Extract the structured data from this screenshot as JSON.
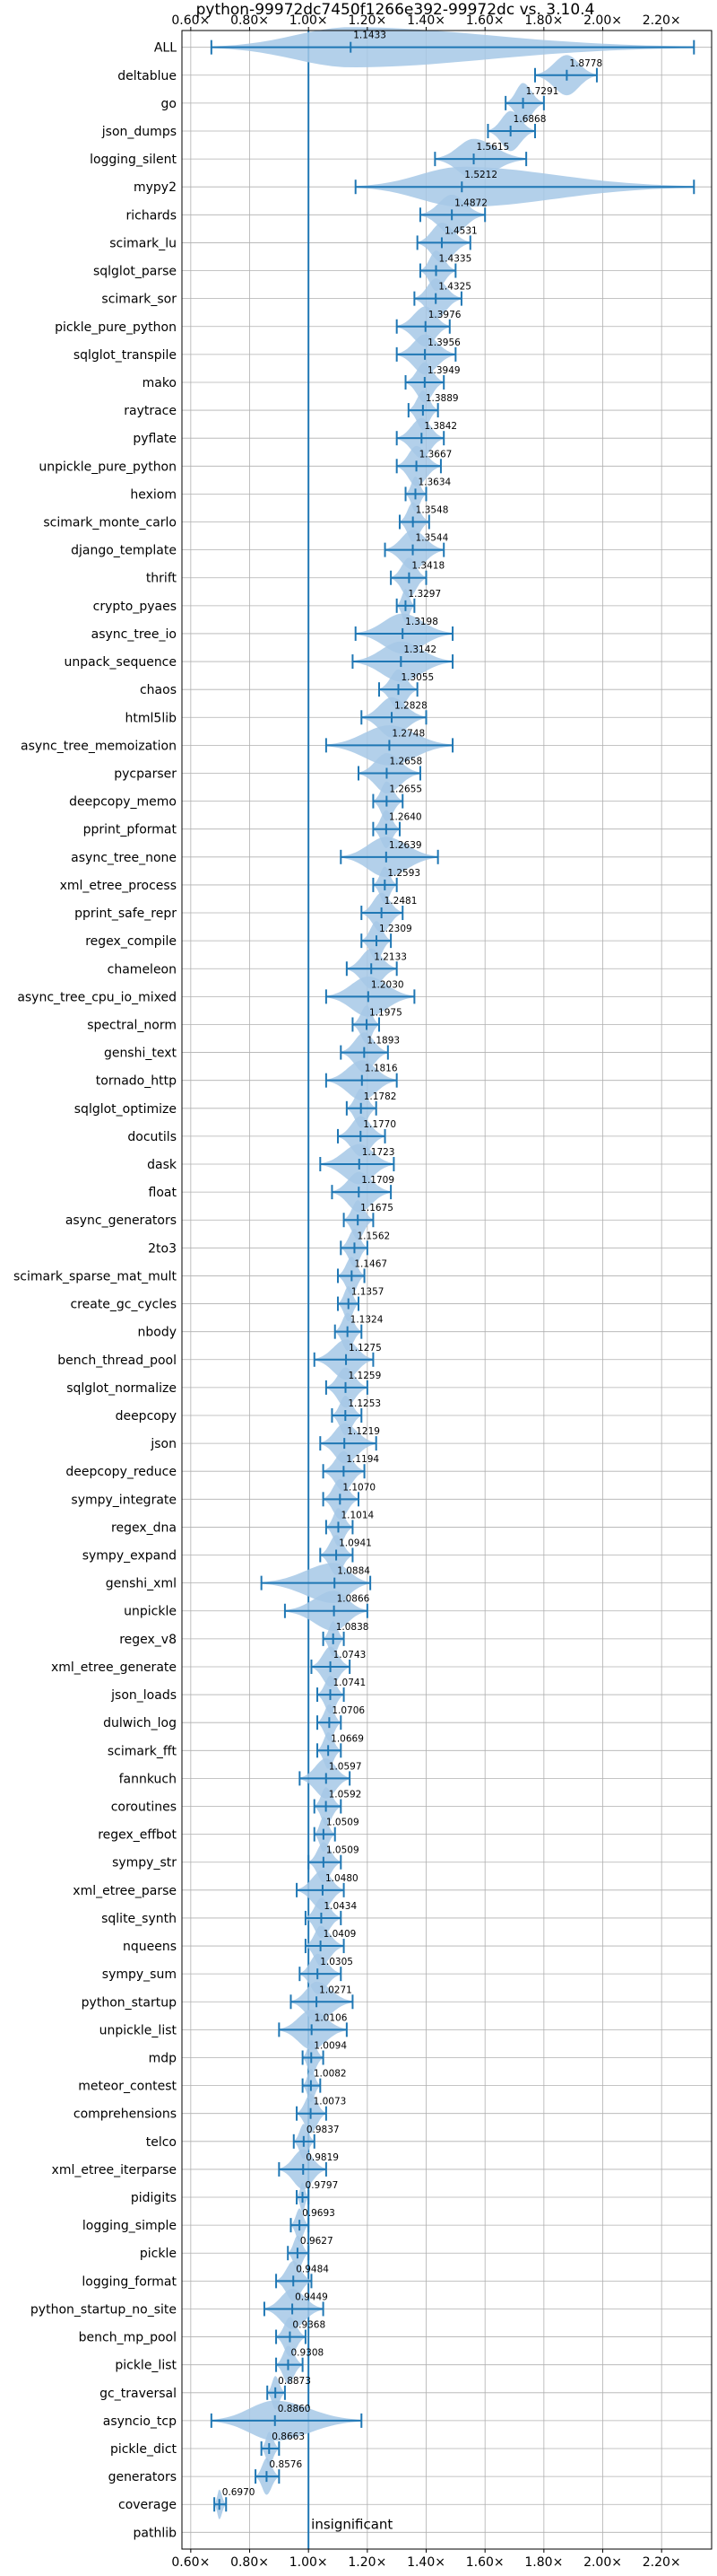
{
  "chart_data": {
    "type": "violin",
    "title": "python-99972dc7450f1266e392-99972dc vs. 3.10.4",
    "xlabel": "",
    "ylabel": "",
    "xlim": [
      0.57,
      2.37
    ],
    "x_ticks": [
      "0.60×",
      "0.80×",
      "1.00×",
      "1.20×",
      "1.40×",
      "1.60×",
      "1.80×",
      "2.00×",
      "2.20×"
    ],
    "x_tick_values": [
      0.6,
      0.8,
      1.0,
      1.2,
      1.4,
      1.6,
      1.8,
      2.0,
      2.2
    ],
    "reference_line": 1.0,
    "grid": true,
    "color": "#1f77b4",
    "violin_color": "#a6c8e6",
    "annotation": "insignificant",
    "benchmarks": [
      {
        "name": "ALL",
        "mean": 1.1433,
        "min": 0.67,
        "max": 2.31,
        "label": "1.1433"
      },
      {
        "name": "deltablue",
        "mean": 1.8778,
        "min": 1.77,
        "max": 1.98,
        "label": "1.8778"
      },
      {
        "name": "go",
        "mean": 1.7291,
        "min": 1.67,
        "max": 1.8,
        "label": "1.7291"
      },
      {
        "name": "json_dumps",
        "mean": 1.6868,
        "min": 1.61,
        "max": 1.77,
        "label": "1.6868"
      },
      {
        "name": "logging_silent",
        "mean": 1.5615,
        "min": 1.43,
        "max": 1.74,
        "label": "1.5615"
      },
      {
        "name": "mypy2",
        "mean": 1.5212,
        "min": 1.16,
        "max": 2.31,
        "label": "1.5212"
      },
      {
        "name": "richards",
        "mean": 1.4872,
        "min": 1.38,
        "max": 1.6,
        "label": "1.4872"
      },
      {
        "name": "scimark_lu",
        "mean": 1.4531,
        "min": 1.37,
        "max": 1.55,
        "label": "1.4531"
      },
      {
        "name": "sqlglot_parse",
        "mean": 1.4335,
        "min": 1.38,
        "max": 1.5,
        "label": "1.4335"
      },
      {
        "name": "scimark_sor",
        "mean": 1.4325,
        "min": 1.36,
        "max": 1.52,
        "label": "1.4325"
      },
      {
        "name": "pickle_pure_python",
        "mean": 1.3976,
        "min": 1.3,
        "max": 1.48,
        "label": "1.3976"
      },
      {
        "name": "sqlglot_transpile",
        "mean": 1.3956,
        "min": 1.3,
        "max": 1.5,
        "label": "1.3956"
      },
      {
        "name": "mako",
        "mean": 1.3949,
        "min": 1.33,
        "max": 1.46,
        "label": "1.3949"
      },
      {
        "name": "raytrace",
        "mean": 1.3889,
        "min": 1.34,
        "max": 1.44,
        "label": "1.3889"
      },
      {
        "name": "pyflate",
        "mean": 1.3842,
        "min": 1.3,
        "max": 1.46,
        "label": "1.3842"
      },
      {
        "name": "unpickle_pure_python",
        "mean": 1.3667,
        "min": 1.3,
        "max": 1.45,
        "label": "1.3667"
      },
      {
        "name": "hexiom",
        "mean": 1.3634,
        "min": 1.33,
        "max": 1.4,
        "label": "1.3634"
      },
      {
        "name": "scimark_monte_carlo",
        "mean": 1.3548,
        "min": 1.31,
        "max": 1.41,
        "label": "1.3548"
      },
      {
        "name": "django_template",
        "mean": 1.3544,
        "min": 1.26,
        "max": 1.46,
        "label": "1.3544"
      },
      {
        "name": "thrift",
        "mean": 1.3418,
        "min": 1.28,
        "max": 1.4,
        "label": "1.3418"
      },
      {
        "name": "crypto_pyaes",
        "mean": 1.3297,
        "min": 1.3,
        "max": 1.36,
        "label": "1.3297"
      },
      {
        "name": "async_tree_io",
        "mean": 1.3198,
        "min": 1.16,
        "max": 1.49,
        "label": "1.3198"
      },
      {
        "name": "unpack_sequence",
        "mean": 1.3142,
        "min": 1.15,
        "max": 1.49,
        "label": "1.3142"
      },
      {
        "name": "chaos",
        "mean": 1.3055,
        "min": 1.24,
        "max": 1.37,
        "label": "1.3055"
      },
      {
        "name": "html5lib",
        "mean": 1.2828,
        "min": 1.18,
        "max": 1.4,
        "label": "1.2828"
      },
      {
        "name": "async_tree_memoization",
        "mean": 1.2748,
        "min": 1.06,
        "max": 1.49,
        "label": "1.2748"
      },
      {
        "name": "pycparser",
        "mean": 1.2658,
        "min": 1.17,
        "max": 1.38,
        "label": "1.2658"
      },
      {
        "name": "deepcopy_memo",
        "mean": 1.2655,
        "min": 1.22,
        "max": 1.32,
        "label": "1.2655"
      },
      {
        "name": "pprint_pformat",
        "mean": 1.264,
        "min": 1.22,
        "max": 1.31,
        "label": "1.2640"
      },
      {
        "name": "async_tree_none",
        "mean": 1.2639,
        "min": 1.11,
        "max": 1.44,
        "label": "1.2639"
      },
      {
        "name": "xml_etree_process",
        "mean": 1.2593,
        "min": 1.22,
        "max": 1.3,
        "label": "1.2593"
      },
      {
        "name": "pprint_safe_repr",
        "mean": 1.2481,
        "min": 1.18,
        "max": 1.32,
        "label": "1.2481"
      },
      {
        "name": "regex_compile",
        "mean": 1.2309,
        "min": 1.18,
        "max": 1.28,
        "label": "1.2309"
      },
      {
        "name": "chameleon",
        "mean": 1.2133,
        "min": 1.13,
        "max": 1.3,
        "label": "1.2133"
      },
      {
        "name": "async_tree_cpu_io_mixed",
        "mean": 1.203,
        "min": 1.06,
        "max": 1.36,
        "label": "1.2030"
      },
      {
        "name": "spectral_norm",
        "mean": 1.1975,
        "min": 1.15,
        "max": 1.24,
        "label": "1.1975"
      },
      {
        "name": "genshi_text",
        "mean": 1.1893,
        "min": 1.11,
        "max": 1.27,
        "label": "1.1893"
      },
      {
        "name": "tornado_http",
        "mean": 1.1816,
        "min": 1.06,
        "max": 1.3,
        "label": "1.1816"
      },
      {
        "name": "sqlglot_optimize",
        "mean": 1.1782,
        "min": 1.13,
        "max": 1.23,
        "label": "1.1782"
      },
      {
        "name": "docutils",
        "mean": 1.177,
        "min": 1.1,
        "max": 1.26,
        "label": "1.1770"
      },
      {
        "name": "dask",
        "mean": 1.1723,
        "min": 1.04,
        "max": 1.29,
        "label": "1.1723"
      },
      {
        "name": "float",
        "mean": 1.1709,
        "min": 1.08,
        "max": 1.28,
        "label": "1.1709"
      },
      {
        "name": "async_generators",
        "mean": 1.1675,
        "min": 1.12,
        "max": 1.22,
        "label": "1.1675"
      },
      {
        "name": "2to3",
        "mean": 1.1562,
        "min": 1.11,
        "max": 1.2,
        "label": "1.1562"
      },
      {
        "name": "scimark_sparse_mat_mult",
        "mean": 1.1467,
        "min": 1.1,
        "max": 1.19,
        "label": "1.1467"
      },
      {
        "name": "create_gc_cycles",
        "mean": 1.1357,
        "min": 1.1,
        "max": 1.17,
        "label": "1.1357"
      },
      {
        "name": "nbody",
        "mean": 1.1324,
        "min": 1.09,
        "max": 1.18,
        "label": "1.1324"
      },
      {
        "name": "bench_thread_pool",
        "mean": 1.1275,
        "min": 1.02,
        "max": 1.22,
        "label": "1.1275"
      },
      {
        "name": "sqlglot_normalize",
        "mean": 1.1259,
        "min": 1.06,
        "max": 1.2,
        "label": "1.1259"
      },
      {
        "name": "deepcopy",
        "mean": 1.1253,
        "min": 1.08,
        "max": 1.18,
        "label": "1.1253"
      },
      {
        "name": "json",
        "mean": 1.1219,
        "min": 1.04,
        "max": 1.23,
        "label": "1.1219"
      },
      {
        "name": "deepcopy_reduce",
        "mean": 1.1194,
        "min": 1.05,
        "max": 1.19,
        "label": "1.1194"
      },
      {
        "name": "sympy_integrate",
        "mean": 1.107,
        "min": 1.05,
        "max": 1.17,
        "label": "1.1070"
      },
      {
        "name": "regex_dna",
        "mean": 1.1014,
        "min": 1.06,
        "max": 1.15,
        "label": "1.1014"
      },
      {
        "name": "sympy_expand",
        "mean": 1.0941,
        "min": 1.04,
        "max": 1.15,
        "label": "1.0941"
      },
      {
        "name": "genshi_xml",
        "mean": 1.0884,
        "min": 0.84,
        "max": 1.21,
        "label": "1.0884"
      },
      {
        "name": "unpickle",
        "mean": 1.0866,
        "min": 0.92,
        "max": 1.2,
        "label": "1.0866"
      },
      {
        "name": "regex_v8",
        "mean": 1.0838,
        "min": 1.05,
        "max": 1.12,
        "label": "1.0838"
      },
      {
        "name": "xml_etree_generate",
        "mean": 1.0743,
        "min": 1.01,
        "max": 1.14,
        "label": "1.0743"
      },
      {
        "name": "json_loads",
        "mean": 1.0741,
        "min": 1.03,
        "max": 1.12,
        "label": "1.0741"
      },
      {
        "name": "dulwich_log",
        "mean": 1.0706,
        "min": 1.03,
        "max": 1.11,
        "label": "1.0706"
      },
      {
        "name": "scimark_fft",
        "mean": 1.0669,
        "min": 1.03,
        "max": 1.11,
        "label": "1.0669"
      },
      {
        "name": "fannkuch",
        "mean": 1.0597,
        "min": 0.97,
        "max": 1.14,
        "label": "1.0597"
      },
      {
        "name": "coroutines",
        "mean": 1.0592,
        "min": 1.02,
        "max": 1.11,
        "label": "1.0592"
      },
      {
        "name": "regex_effbot",
        "mean": 1.0509,
        "min": 1.02,
        "max": 1.09,
        "label": "1.0509"
      },
      {
        "name": "sympy_str",
        "mean": 1.0509,
        "min": 1.0,
        "max": 1.11,
        "label": "1.0509"
      },
      {
        "name": "xml_etree_parse",
        "mean": 1.048,
        "min": 0.96,
        "max": 1.12,
        "label": "1.0480"
      },
      {
        "name": "sqlite_synth",
        "mean": 1.0434,
        "min": 0.99,
        "max": 1.11,
        "label": "1.0434"
      },
      {
        "name": "nqueens",
        "mean": 1.0409,
        "min": 0.99,
        "max": 1.12,
        "label": "1.0409"
      },
      {
        "name": "sympy_sum",
        "mean": 1.0305,
        "min": 0.97,
        "max": 1.11,
        "label": "1.0305"
      },
      {
        "name": "python_startup",
        "mean": 1.0271,
        "min": 0.94,
        "max": 1.15,
        "label": "1.0271"
      },
      {
        "name": "unpickle_list",
        "mean": 1.0106,
        "min": 0.9,
        "max": 1.13,
        "label": "1.0106"
      },
      {
        "name": "mdp",
        "mean": 1.0094,
        "min": 0.98,
        "max": 1.05,
        "label": "1.0094"
      },
      {
        "name": "meteor_contest",
        "mean": 1.0082,
        "min": 0.98,
        "max": 1.04,
        "label": "1.0082"
      },
      {
        "name": "comprehensions",
        "mean": 1.0073,
        "min": 0.96,
        "max": 1.06,
        "label": "1.0073"
      },
      {
        "name": "telco",
        "mean": 0.9837,
        "min": 0.95,
        "max": 1.02,
        "label": "0.9837"
      },
      {
        "name": "xml_etree_iterparse",
        "mean": 0.9819,
        "min": 0.9,
        "max": 1.06,
        "label": "0.9819"
      },
      {
        "name": "pidigits",
        "mean": 0.9797,
        "min": 0.96,
        "max": 1.0,
        "label": "0.9797"
      },
      {
        "name": "logging_simple",
        "mean": 0.9693,
        "min": 0.94,
        "max": 1.0,
        "label": "0.9693"
      },
      {
        "name": "pickle",
        "mean": 0.9627,
        "min": 0.93,
        "max": 1.0,
        "label": "0.9627"
      },
      {
        "name": "logging_format",
        "mean": 0.9484,
        "min": 0.89,
        "max": 1.01,
        "label": "0.9484"
      },
      {
        "name": "python_startup_no_site",
        "mean": 0.9449,
        "min": 0.85,
        "max": 1.05,
        "label": "0.9449"
      },
      {
        "name": "bench_mp_pool",
        "mean": 0.9368,
        "min": 0.89,
        "max": 0.99,
        "label": "0.9368"
      },
      {
        "name": "pickle_list",
        "mean": 0.9308,
        "min": 0.89,
        "max": 0.98,
        "label": "0.9308"
      },
      {
        "name": "gc_traversal",
        "mean": 0.8873,
        "min": 0.86,
        "max": 0.92,
        "label": "0.8873"
      },
      {
        "name": "asyncio_tcp",
        "mean": 0.886,
        "min": 0.67,
        "max": 1.18,
        "label": "0.8860"
      },
      {
        "name": "pickle_dict",
        "mean": 0.8663,
        "min": 0.84,
        "max": 0.9,
        "label": "0.8663"
      },
      {
        "name": "generators",
        "mean": 0.8576,
        "min": 0.82,
        "max": 0.9,
        "label": "0.8576"
      },
      {
        "name": "coverage",
        "mean": 0.697,
        "min": 0.68,
        "max": 0.72,
        "label": "0.6970"
      },
      {
        "name": "pathlib",
        "mean": null,
        "min": null,
        "max": null,
        "label": "insignificant"
      }
    ]
  }
}
